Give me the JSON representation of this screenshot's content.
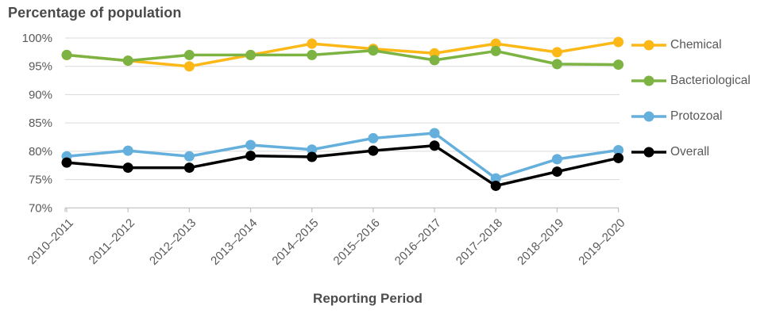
{
  "chart_data": {
    "type": "line",
    "title": "Percentage of population",
    "xlabel": "Reporting Period",
    "ylabel": "",
    "categories": [
      "2010–2011",
      "2011–2012",
      "2012–2013",
      "2013–2014",
      "2014–2015",
      "2015–2016",
      "2016–2017",
      "2017–2018",
      "2018–2019",
      "2019–2020"
    ],
    "ytick_labels": [
      "100%",
      "95%",
      "90%",
      "85%",
      "80%",
      "75%",
      "70%"
    ],
    "ytick_values": [
      100,
      95,
      90,
      85,
      80,
      75,
      70
    ],
    "ylim": [
      70,
      100
    ],
    "grid": true,
    "legend_position": "right",
    "series": [
      {
        "name": "Chemical",
        "color": "#fcb817",
        "values": [
          97,
          96,
          95,
          97,
          99,
          98.1,
          97.3,
          99,
          97.5,
          99.3
        ]
      },
      {
        "name": "Bacteriological",
        "color": "#7cb342",
        "values": [
          97,
          96,
          97,
          97,
          97,
          97.8,
          96.1,
          97.7,
          95.4,
          95.3
        ]
      },
      {
        "name": "Protozoal",
        "color": "#64afdc",
        "values": [
          79.1,
          80.1,
          79.1,
          81.1,
          80.3,
          82.3,
          83.2,
          75.2,
          78.6,
          80.2
        ]
      },
      {
        "name": "Overall",
        "color": "#000000",
        "values": [
          78,
          77.1,
          77.1,
          79.2,
          79,
          80.1,
          81,
          73.9,
          76.4,
          78.8
        ]
      }
    ]
  },
  "colors": {
    "gridline": "#d9d9d9",
    "axis": "#bfbfbf",
    "tick_text": "#595959",
    "title_text": "#4a4a4a"
  }
}
